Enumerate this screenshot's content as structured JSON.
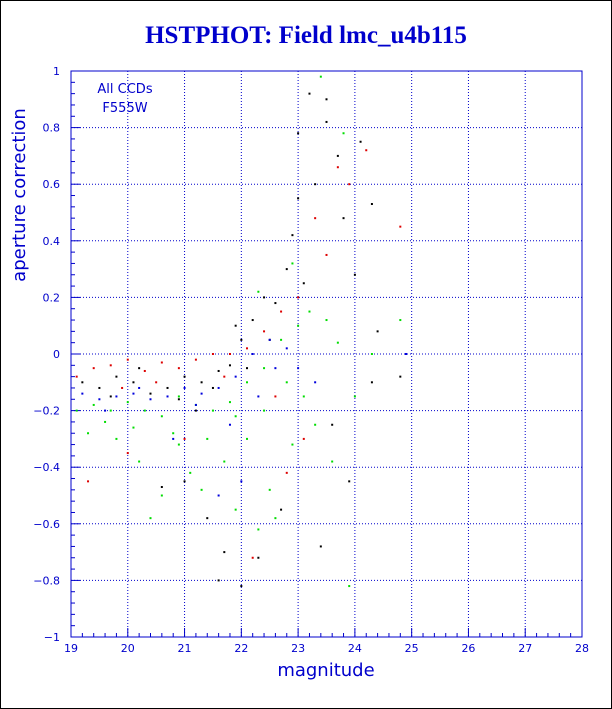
{
  "chart_data": {
    "type": "scatter",
    "title": "HSTPHOT: Field lmc_u4b115",
    "xlabel": "magnitude",
    "ylabel": "aperture correction",
    "xlim": [
      19,
      28
    ],
    "ylim": [
      -1,
      1
    ],
    "x_ticks": [
      19,
      20,
      21,
      22,
      23,
      24,
      25,
      26,
      27,
      28
    ],
    "y_ticks": [
      -1,
      -0.8,
      -0.6,
      -0.4,
      -0.2,
      0,
      0.2,
      0.4,
      0.6,
      0.8,
      1
    ],
    "x_tick_labels": [
      "19",
      "20",
      "21",
      "22",
      "23",
      "24",
      "25",
      "26",
      "27",
      "28"
    ],
    "y_tick_labels": [
      "−1",
      "−0.8",
      "−0.6",
      "−0.4",
      "−0.2",
      "0",
      "0.2",
      "0.4",
      "0.6",
      "0.8",
      "1"
    ],
    "grid": true,
    "annotation": [
      "All CCDs",
      "F555W"
    ],
    "colors": {
      "text": "#0000cc",
      "grid": "#0000cc",
      "title": "#0000cc"
    },
    "series": [
      {
        "color": "#000000",
        "points": [
          [
            19.2,
            -0.1
          ],
          [
            19.5,
            -0.12
          ],
          [
            19.8,
            -0.08
          ],
          [
            20.1,
            -0.1
          ],
          [
            20.4,
            -0.14
          ],
          [
            20.7,
            -0.12
          ],
          [
            21.0,
            -0.08
          ],
          [
            21.3,
            -0.1
          ],
          [
            21.6,
            -0.06
          ],
          [
            21.8,
            -0.04
          ],
          [
            22.0,
            0.05
          ],
          [
            22.2,
            0.12
          ],
          [
            22.4,
            0.2
          ],
          [
            22.6,
            0.18
          ],
          [
            22.8,
            0.3
          ],
          [
            22.9,
            0.42
          ],
          [
            23.0,
            0.55
          ],
          [
            23.1,
            0.25
          ],
          [
            23.3,
            0.6
          ],
          [
            23.5,
            0.82
          ],
          [
            23.2,
            0.92
          ],
          [
            23.5,
            0.9
          ],
          [
            23.7,
            0.7
          ],
          [
            23.8,
            0.48
          ],
          [
            24.1,
            0.75
          ],
          [
            24.3,
            0.53
          ],
          [
            24.0,
            0.28
          ],
          [
            24.4,
            0.08
          ],
          [
            24.3,
            -0.1
          ],
          [
            23.6,
            -0.25
          ],
          [
            23.9,
            -0.45
          ],
          [
            23.4,
            -0.68
          ],
          [
            22.3,
            -0.72
          ],
          [
            22.0,
            -0.82
          ],
          [
            21.7,
            -0.7
          ],
          [
            21.4,
            -0.58
          ],
          [
            21.0,
            -0.45
          ],
          [
            20.6,
            -0.47
          ],
          [
            21.6,
            -0.8
          ],
          [
            22.7,
            -0.55
          ],
          [
            22.5,
            0.05
          ],
          [
            22.1,
            -0.05
          ],
          [
            21.9,
            0.1
          ],
          [
            21.5,
            -0.12
          ],
          [
            21.2,
            -0.2
          ],
          [
            20.9,
            -0.16
          ],
          [
            20.2,
            -0.05
          ],
          [
            19.7,
            -0.15
          ],
          [
            24.8,
            -0.08
          ],
          [
            23.0,
            0.78
          ]
        ]
      },
      {
        "color": "#dd0000",
        "points": [
          [
            19.1,
            -0.08
          ],
          [
            19.4,
            -0.05
          ],
          [
            19.7,
            -0.04
          ],
          [
            20.0,
            -0.02
          ],
          [
            20.3,
            -0.06
          ],
          [
            20.6,
            -0.03
          ],
          [
            20.9,
            -0.05
          ],
          [
            21.2,
            -0.02
          ],
          [
            21.5,
            0.0
          ],
          [
            21.8,
            0.0
          ],
          [
            22.1,
            0.02
          ],
          [
            22.4,
            0.08
          ],
          [
            22.7,
            0.15
          ],
          [
            23.0,
            0.2
          ],
          [
            23.3,
            0.48
          ],
          [
            23.7,
            0.66
          ],
          [
            23.9,
            0.6
          ],
          [
            24.2,
            0.72
          ],
          [
            24.8,
            0.45
          ],
          [
            23.5,
            0.35
          ],
          [
            22.6,
            -0.15
          ],
          [
            21.0,
            -0.3
          ],
          [
            20.0,
            -0.35
          ],
          [
            19.3,
            -0.45
          ],
          [
            22.8,
            -0.42
          ],
          [
            22.2,
            -0.72
          ],
          [
            23.1,
            -0.3
          ],
          [
            21.7,
            -0.08
          ],
          [
            20.5,
            -0.1
          ],
          [
            19.9,
            -0.12
          ]
        ]
      },
      {
        "color": "#00dd00",
        "points": [
          [
            19.1,
            -0.2
          ],
          [
            19.4,
            -0.18
          ],
          [
            19.7,
            -0.2
          ],
          [
            20.0,
            -0.17
          ],
          [
            20.3,
            -0.2
          ],
          [
            20.6,
            -0.22
          ],
          [
            20.9,
            -0.15
          ],
          [
            21.2,
            -0.18
          ],
          [
            21.5,
            -0.2
          ],
          [
            21.8,
            -0.17
          ],
          [
            22.1,
            -0.1
          ],
          [
            22.4,
            -0.05
          ],
          [
            22.7,
            0.05
          ],
          [
            23.0,
            0.1
          ],
          [
            23.2,
            0.15
          ],
          [
            23.5,
            0.12
          ],
          [
            23.7,
            0.04
          ],
          [
            24.0,
            -0.15
          ],
          [
            24.3,
            0.0
          ],
          [
            24.8,
            0.12
          ],
          [
            19.3,
            -0.28
          ],
          [
            19.8,
            -0.3
          ],
          [
            20.2,
            -0.38
          ],
          [
            20.6,
            -0.5
          ],
          [
            20.9,
            -0.32
          ],
          [
            21.3,
            -0.48
          ],
          [
            21.7,
            -0.38
          ],
          [
            22.1,
            -0.3
          ],
          [
            22.5,
            -0.48
          ],
          [
            22.9,
            -0.32
          ],
          [
            23.3,
            -0.25
          ],
          [
            23.6,
            -0.38
          ],
          [
            23.9,
            -0.82
          ],
          [
            22.3,
            -0.62
          ],
          [
            21.9,
            -0.55
          ],
          [
            21.1,
            -0.42
          ],
          [
            20.4,
            -0.58
          ],
          [
            22.6,
            -0.58
          ],
          [
            23.1,
            -0.15
          ],
          [
            23.4,
            0.98
          ],
          [
            23.8,
            0.78
          ],
          [
            22.9,
            0.32
          ],
          [
            22.3,
            0.22
          ],
          [
            19.6,
            -0.24
          ],
          [
            20.1,
            -0.26
          ],
          [
            20.8,
            -0.28
          ],
          [
            21.4,
            -0.3
          ],
          [
            21.9,
            -0.22
          ],
          [
            22.4,
            -0.2
          ],
          [
            22.8,
            -0.1
          ]
        ]
      },
      {
        "color": "#0000dd",
        "points": [
          [
            19.2,
            -0.14
          ],
          [
            19.5,
            -0.16
          ],
          [
            19.8,
            -0.15
          ],
          [
            20.1,
            -0.14
          ],
          [
            20.4,
            -0.16
          ],
          [
            20.7,
            -0.15
          ],
          [
            21.0,
            -0.12
          ],
          [
            21.3,
            -0.14
          ],
          [
            21.6,
            -0.12
          ],
          [
            21.9,
            -0.08
          ],
          [
            22.2,
            0.0
          ],
          [
            22.5,
            0.05
          ],
          [
            22.8,
            0.02
          ],
          [
            23.0,
            -0.05
          ],
          [
            23.3,
            -0.1
          ],
          [
            24.9,
            0.0
          ],
          [
            22.0,
            -0.45
          ],
          [
            21.6,
            -0.5
          ],
          [
            20.8,
            -0.3
          ],
          [
            19.6,
            -0.2
          ],
          [
            20.2,
            -0.12
          ],
          [
            21.2,
            -0.18
          ],
          [
            22.3,
            -0.15
          ],
          [
            21.8,
            -0.25
          ],
          [
            22.6,
            -0.05
          ]
        ]
      }
    ]
  }
}
